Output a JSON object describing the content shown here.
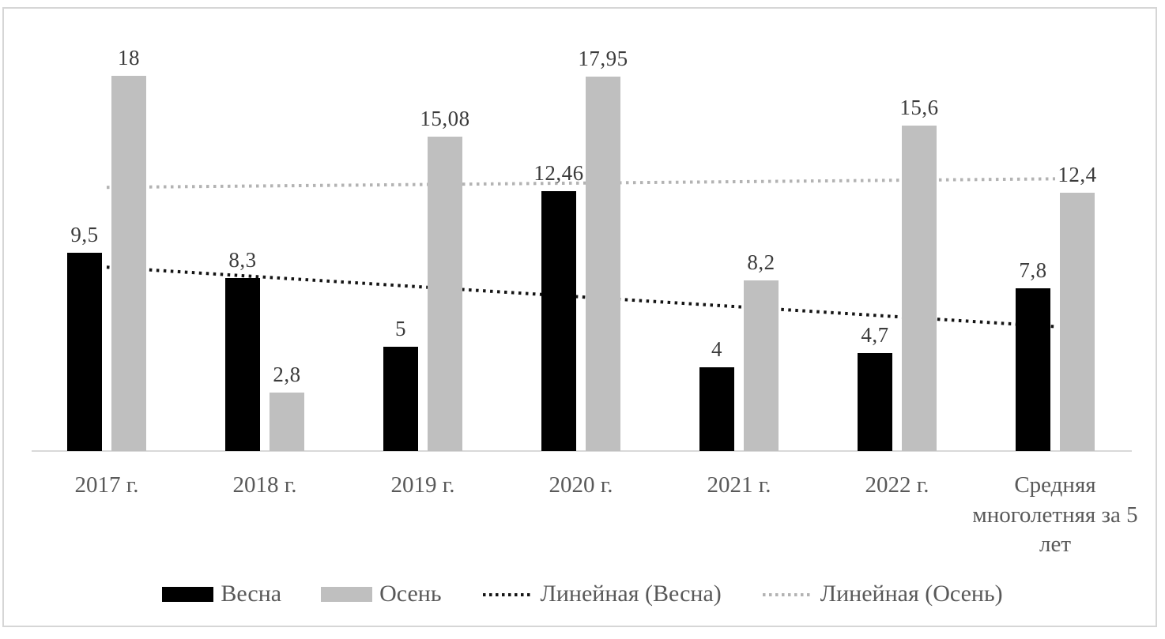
{
  "chart_data": {
    "type": "bar",
    "title": "",
    "xlabel": "",
    "ylabel": "",
    "categories": [
      "2017 г.",
      "2018 г.",
      "2019 г.",
      "2020 г.",
      "2021 г.",
      "2022 г.",
      "Средняя многолетняя за 5 лет"
    ],
    "series": [
      {
        "name": "Весна",
        "color": "#000000",
        "values": [
          9.5,
          8.3,
          5,
          12.46,
          4,
          4.7,
          7.8
        ],
        "labels": [
          "9,5",
          "8,3",
          "5",
          "12,46",
          "4",
          "4,7",
          "7,8"
        ]
      },
      {
        "name": "Осень",
        "color": "#bfbfbf",
        "values": [
          18,
          2.8,
          15.08,
          17.95,
          8.2,
          15.6,
          12.4
        ],
        "labels": [
          "18",
          "2,8",
          "15,08",
          "17,95",
          "8,2",
          "15,6",
          "12,4"
        ]
      }
    ],
    "trendlines": [
      {
        "name": "Линейная (Весна)",
        "series": "Весна",
        "color": "#141414",
        "start_value": 8.82,
        "end_value": 5.97
      },
      {
        "name": "Линейная (Осень)",
        "series": "Осень",
        "color": "#b3b3b3",
        "start_value": 12.65,
        "end_value": 13.06
      }
    ],
    "ylim": [
      0,
      18
    ],
    "grid": false,
    "y_axis_visible": false,
    "legend_position": "bottom",
    "legend": [
      "Весна",
      "Осень",
      "Линейная (Весна)",
      "Линейная (Осень)"
    ],
    "frame_color": "#d6d6d6",
    "axis_line_color": "#d9d9d9",
    "data_label_color": "#3b3b3b",
    "axis_label_color": "#595959"
  }
}
